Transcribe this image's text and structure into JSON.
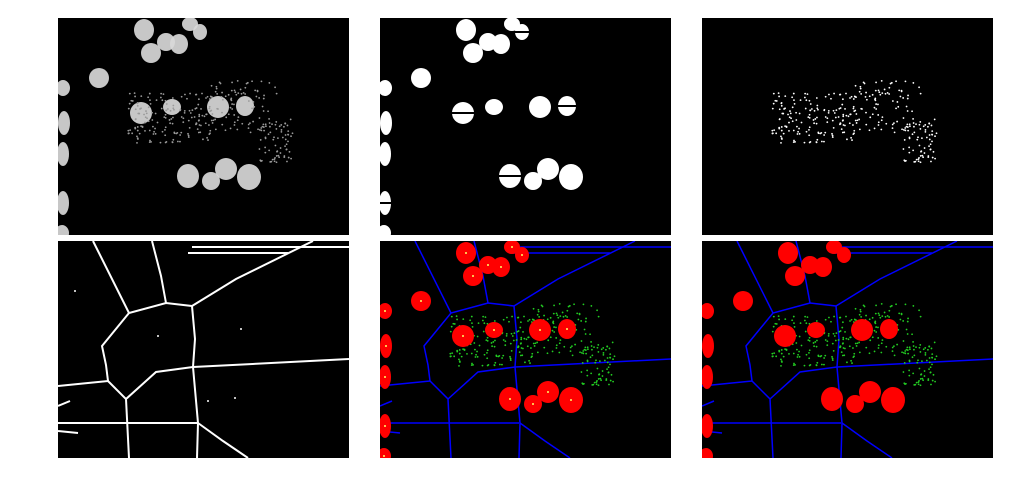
{
  "figure": {
    "panels": [
      {
        "id": "p1",
        "name": "nuclei-grayscale-panel",
        "content": "grayscale-fluorescence"
      },
      {
        "id": "p2",
        "name": "nuclei-binary-mask-panel",
        "content": "binary-mask"
      },
      {
        "id": "p3",
        "name": "cytoplasm-spots-panel",
        "content": "binary-spots"
      },
      {
        "id": "p4",
        "name": "cell-boundaries-panel",
        "content": "boundary-lines"
      },
      {
        "id": "p5",
        "name": "segmentation-overlay-panel",
        "content": "overlay"
      },
      {
        "id": "p6",
        "name": "segmentation-overlay-final-panel",
        "content": "overlay"
      }
    ]
  },
  "colors": {
    "background": "#ffffff",
    "panel_bg": "#000000",
    "nucleus_fill": "#ff0000",
    "boundary_line": "#0000ff",
    "spot": "#22cc22",
    "centroid": "#ffff66",
    "mask": "#ffffff",
    "gray_bright": "#d8d8d8",
    "gray_mid": "#9a9a9a"
  }
}
